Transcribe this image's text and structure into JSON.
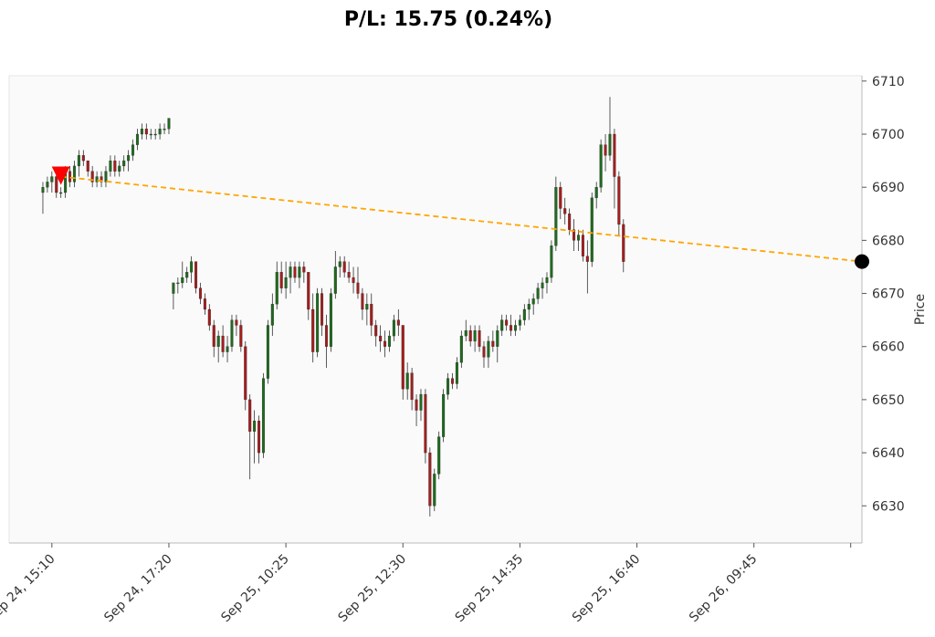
{
  "chart_data": {
    "type": "candlestick",
    "title": "P/L: 15.75 (0.24%)",
    "ylabel": "Price",
    "xlabel": "",
    "ylim": [
      6623,
      6711
    ],
    "y_ticks": [
      6630,
      6640,
      6650,
      6660,
      6670,
      6680,
      6690,
      6700,
      6710
    ],
    "x_ticks": [
      {
        "label": "Sep 24, 15:10",
        "index": 2
      },
      {
        "label": "Sep 24, 17:20",
        "index": 28
      },
      {
        "label": "Sep 25, 10:25",
        "index": 54
      },
      {
        "label": "Sep 25, 12:30",
        "index": 80
      },
      {
        "label": "Sep 25, 14:35",
        "index": 106
      },
      {
        "label": "Sep 25, 16:40",
        "index": 132
      },
      {
        "label": "Sep 26, 09:45",
        "index": 158
      }
    ],
    "x_range": [
      -7.5,
      182
    ],
    "colors": {
      "up": "#1e6b1e",
      "down": "#a51d1d",
      "wick": "#333333",
      "trade_line": "#ffa500",
      "entry_marker": "#ff0000",
      "exit_marker": "#000000",
      "plot_bg": "#fafafa"
    },
    "trade": {
      "entry": {
        "index": 4,
        "price": 6692
      },
      "exit": {
        "index": 182,
        "price": 6676
      }
    },
    "candles": [
      [
        6689,
        6691,
        6685,
        6690
      ],
      [
        6690,
        6692,
        6689,
        6691
      ],
      [
        6691,
        6693,
        6689,
        6692
      ],
      [
        6692,
        6693,
        6688,
        6689
      ],
      [
        6689,
        6690,
        6688,
        6689
      ],
      [
        6689,
        6694,
        6688,
        6693
      ],
      [
        6693,
        6694,
        6690,
        6691
      ],
      [
        6691,
        6695,
        6690,
        6694
      ],
      [
        6694,
        6697,
        6692,
        6696
      ],
      [
        6696,
        6697,
        6694,
        6695
      ],
      [
        6695,
        6695,
        6692,
        6693
      ],
      [
        6693,
        6694,
        6690,
        6691
      ],
      [
        6691,
        6693,
        6690,
        6692
      ],
      [
        6692,
        6693,
        6690,
        6691
      ],
      [
        6691,
        6694,
        6690,
        6693
      ],
      [
        6693,
        6696,
        6692,
        6695
      ],
      [
        6695,
        6696,
        6692,
        6693
      ],
      [
        6693,
        6695,
        6692,
        6694
      ],
      [
        6694,
        6696,
        6693,
        6695
      ],
      [
        6695,
        6697,
        6693,
        6696
      ],
      [
        6696,
        6699,
        6695,
        6698
      ],
      [
        6698,
        6701,
        6697,
        6700
      ],
      [
        6700,
        6702,
        6699,
        6701
      ],
      [
        6701,
        6702,
        6699,
        6700
      ],
      [
        6700,
        6701,
        6699,
        6700
      ],
      [
        6700,
        6701,
        6699,
        6700
      ],
      [
        6700,
        6702,
        6699,
        6701
      ],
      [
        6701,
        6702,
        6700,
        6701
      ],
      [
        6701,
        6703,
        6700,
        6703
      ],
      [
        6670,
        6672,
        6667,
        6672
      ],
      [
        6672,
        6673,
        6670,
        6672
      ],
      [
        6672,
        6676,
        6671,
        6673
      ],
      [
        6673,
        6675,
        6672,
        6674
      ],
      [
        6674,
        6677,
        6672,
        6676
      ],
      [
        6676,
        6676,
        6670,
        6671
      ],
      [
        6671,
        6672,
        6668,
        6669
      ],
      [
        6669,
        6670,
        6666,
        6667
      ],
      [
        6667,
        6668,
        6663,
        6664
      ],
      [
        6664,
        6665,
        6658,
        6660
      ],
      [
        6660,
        6663,
        6657,
        6662
      ],
      [
        6662,
        6664,
        6658,
        6659
      ],
      [
        6659,
        6662,
        6657,
        6660
      ],
      [
        6660,
        6666,
        6659,
        6665
      ],
      [
        6665,
        6666,
        6662,
        6664
      ],
      [
        6664,
        6665,
        6659,
        6660
      ],
      [
        6660,
        6661,
        6648,
        6650
      ],
      [
        6650,
        6651,
        6635,
        6644
      ],
      [
        6644,
        6648,
        6638,
        6646
      ],
      [
        6646,
        6647,
        6638,
        6640
      ],
      [
        6640,
        6655,
        6639,
        6654
      ],
      [
        6654,
        6665,
        6653,
        6664
      ],
      [
        6664,
        6670,
        6662,
        6668
      ],
      [
        6668,
        6676,
        6667,
        6674
      ],
      [
        6674,
        6676,
        6670,
        6671
      ],
      [
        6671,
        6676,
        6669,
        6673
      ],
      [
        6673,
        6676,
        6670,
        6675
      ],
      [
        6675,
        6676,
        6672,
        6673
      ],
      [
        6673,
        6676,
        6671,
        6675
      ],
      [
        6675,
        6676,
        6672,
        6674
      ],
      [
        6674,
        6674,
        6665,
        6667
      ],
      [
        6667,
        6670,
        6657,
        6659
      ],
      [
        6659,
        6671,
        6658,
        6670
      ],
      [
        6670,
        6671,
        6662,
        6664
      ],
      [
        6664,
        6666,
        6656,
        6660
      ],
      [
        6660,
        6671,
        6659,
        6670
      ],
      [
        6670,
        6678,
        6669,
        6675
      ],
      [
        6675,
        6677,
        6673,
        6676
      ],
      [
        6676,
        6677,
        6673,
        6674
      ],
      [
        6674,
        6676,
        6672,
        6673
      ],
      [
        6673,
        6675,
        6670,
        6672
      ],
      [
        6672,
        6675,
        6669,
        6670
      ],
      [
        6670,
        6671,
        6665,
        6667
      ],
      [
        6667,
        6670,
        6664,
        6668
      ],
      [
        6668,
        6670,
        6662,
        6664
      ],
      [
        6664,
        6665,
        6660,
        6662
      ],
      [
        6662,
        6664,
        6659,
        6661
      ],
      [
        6661,
        6663,
        6658,
        6660
      ],
      [
        6660,
        6663,
        6659,
        6662
      ],
      [
        6662,
        6666,
        6661,
        6665
      ],
      [
        6665,
        6667,
        6662,
        6664
      ],
      [
        6664,
        6664,
        6650,
        6652
      ],
      [
        6652,
        6657,
        6650,
        6655
      ],
      [
        6655,
        6656,
        6648,
        6650
      ],
      [
        6650,
        6651,
        6645,
        6648
      ],
      [
        6648,
        6652,
        6646,
        6651
      ],
      [
        6651,
        6652,
        6638,
        6640
      ],
      [
        6640,
        6641,
        6628,
        6630
      ],
      [
        6630,
        6637,
        6629,
        6636
      ],
      [
        6636,
        6644,
        6635,
        6643
      ],
      [
        6643,
        6652,
        6642,
        6651
      ],
      [
        6651,
        6655,
        6650,
        6654
      ],
      [
        6654,
        6655,
        6652,
        6653
      ],
      [
        6653,
        6658,
        6652,
        6657
      ],
      [
        6657,
        6663,
        6656,
        6662
      ],
      [
        6662,
        6665,
        6661,
        6663
      ],
      [
        6663,
        6664,
        6660,
        6661
      ],
      [
        6661,
        6664,
        6659,
        6663
      ],
      [
        6663,
        6664,
        6659,
        6660
      ],
      [
        6660,
        6661,
        6656,
        6658
      ],
      [
        6658,
        6662,
        6656,
        6661
      ],
      [
        6661,
        6663,
        6659,
        6660
      ],
      [
        6660,
        6664,
        6657,
        6663
      ],
      [
        6663,
        6666,
        6662,
        6665
      ],
      [
        6665,
        6666,
        6663,
        6664
      ],
      [
        6664,
        6666,
        6662,
        6663
      ],
      [
        6663,
        6665,
        6662,
        6664
      ],
      [
        6664,
        6666,
        6663,
        6665
      ],
      [
        6665,
        6668,
        6664,
        6667
      ],
      [
        6667,
        6669,
        6665,
        6668
      ],
      [
        6668,
        6670,
        6666,
        6669
      ],
      [
        6669,
        6672,
        6668,
        6671
      ],
      [
        6671,
        6673,
        6669,
        6672
      ],
      [
        6672,
        6674,
        6670,
        6673
      ],
      [
        6673,
        6680,
        6672,
        6679
      ],
      [
        6679,
        6692,
        6678,
        6690
      ],
      [
        6690,
        6691,
        6684,
        6686
      ],
      [
        6686,
        6688,
        6683,
        6685
      ],
      [
        6685,
        6686,
        6681,
        6682
      ],
      [
        6682,
        6684,
        6678,
        6680
      ],
      [
        6680,
        6682,
        6678,
        6681
      ],
      [
        6681,
        6682,
        6676,
        6677
      ],
      [
        6677,
        6680,
        6670,
        6676
      ],
      [
        6676,
        6689,
        6675,
        6688
      ],
      [
        6688,
        6691,
        6686,
        6690
      ],
      [
        6690,
        6699,
        6689,
        6698
      ],
      [
        6698,
        6700,
        6693,
        6696
      ],
      [
        6696,
        6707,
        6695,
        6700
      ],
      [
        6700,
        6701,
        6686,
        6692
      ],
      [
        6692,
        6693,
        6681,
        6683
      ],
      [
        6683,
        6684,
        6674,
        6676
      ]
    ]
  }
}
